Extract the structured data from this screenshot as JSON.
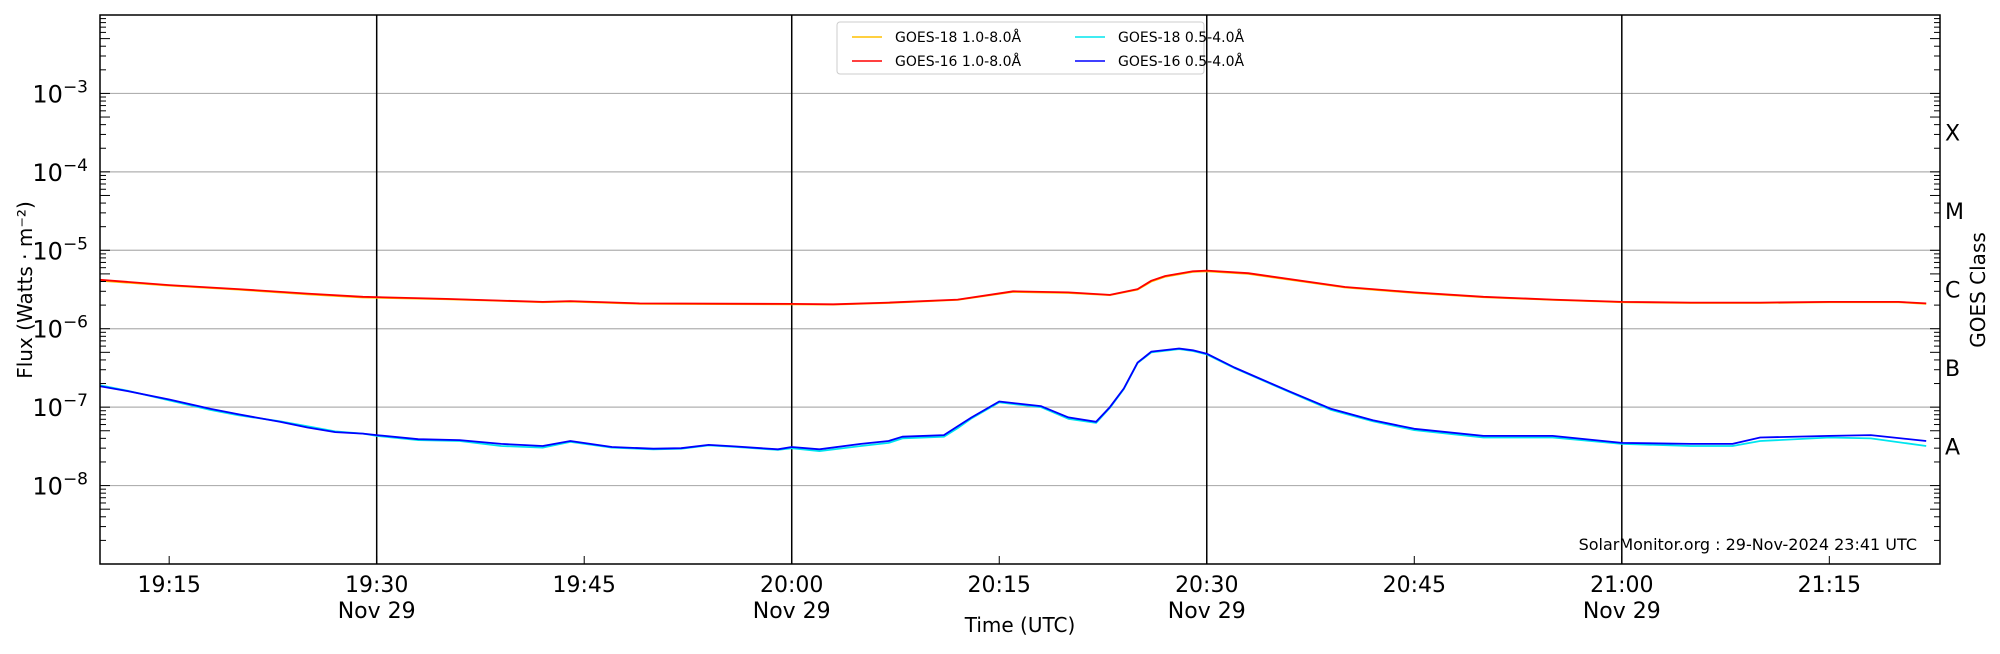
{
  "chart_data": {
    "type": "line",
    "title": "",
    "xlabel": "Time (UTC)",
    "ylabel": "Flux (Watts · m⁻²)",
    "ylabel_right": "GOES Class",
    "yscale": "log",
    "ylim": [
      1e-09,
      0.01
    ],
    "xlim": [
      "19:10",
      "21:23"
    ],
    "grid": "horizontal at each decade",
    "y_ticks": [
      {
        "value": 0.001,
        "base": "10",
        "exp": "−3"
      },
      {
        "value": 0.0001,
        "base": "10",
        "exp": "−4"
      },
      {
        "value": 1e-05,
        "base": "10",
        "exp": "−5"
      },
      {
        "value": 1e-06,
        "base": "10",
        "exp": "−6"
      },
      {
        "value": 1e-07,
        "base": "10",
        "exp": "−7"
      },
      {
        "value": 1e-08,
        "base": "10",
        "exp": "−8"
      }
    ],
    "x_ticks": [
      {
        "time": "19:15",
        "label": "19:15",
        "date": "",
        "vline": false
      },
      {
        "time": "19:30",
        "label": "19:30",
        "date": "Nov 29",
        "vline": true
      },
      {
        "time": "19:45",
        "label": "19:45",
        "date": "",
        "vline": false
      },
      {
        "time": "20:00",
        "label": "20:00",
        "date": "Nov 29",
        "vline": true
      },
      {
        "time": "20:15",
        "label": "20:15",
        "date": "",
        "vline": false
      },
      {
        "time": "20:30",
        "label": "20:30",
        "date": "Nov 29",
        "vline": true
      },
      {
        "time": "20:45",
        "label": "20:45",
        "date": "",
        "vline": false
      },
      {
        "time": "21:00",
        "label": "21:00",
        "date": "Nov 29",
        "vline": true
      },
      {
        "time": "21:15",
        "label": "21:15",
        "date": "",
        "vline": false
      }
    ],
    "goes_classes": [
      {
        "label": "X",
        "value": 0.000316
      },
      {
        "label": "M",
        "value": 3.16e-05
      },
      {
        "label": "C",
        "value": 3.16e-06
      },
      {
        "label": "B",
        "value": 3.16e-07
      },
      {
        "label": "A",
        "value": 3.16e-08
      }
    ],
    "legend_position": "top-center",
    "series": [
      {
        "name": "GOES-18 1.0-8.0Å",
        "color": "#ffc000",
        "x": [
          "19:10",
          "19:15",
          "19:20",
          "19:25",
          "19:29",
          "19:35",
          "19:42",
          "19:44",
          "19:49",
          "20:00",
          "20:03",
          "20:07",
          "20:12",
          "20:16",
          "20:20",
          "20:23",
          "20:25",
          "20:26",
          "20:27",
          "20:29",
          "20:30",
          "20:33",
          "20:40",
          "20:45",
          "20:50",
          "20:55",
          "21:00",
          "21:05",
          "21:10",
          "21:15",
          "21:20",
          "21:22"
        ],
        "values": [
          4.1e-06,
          3.55e-06,
          3.15e-06,
          2.75e-06,
          2.5e-06,
          2.38e-06,
          2.18e-06,
          2.22e-06,
          2.08e-06,
          2.05e-06,
          2.03e-06,
          2.13e-06,
          2.33e-06,
          2.95e-06,
          2.85e-06,
          2.68e-06,
          3.15e-06,
          4e-06,
          4.6e-06,
          5.3e-06,
          5.4e-06,
          5e-06,
          3.35e-06,
          2.85e-06,
          2.52e-06,
          2.33e-06,
          2.18e-06,
          2.13e-06,
          2.13e-06,
          2.18e-06,
          2.18e-06,
          2.08e-06
        ]
      },
      {
        "name": "GOES-18 0.5-4.0Å",
        "color": "#00e5ee",
        "x": [
          "19:10",
          "19:12",
          "19:15",
          "19:18",
          "19:20",
          "19:23",
          "19:25",
          "19:27",
          "19:29",
          "19:30",
          "19:33",
          "19:36",
          "19:39",
          "19:42",
          "19:44",
          "19:47",
          "19:50",
          "19:52",
          "19:54",
          "19:56",
          "19:59",
          "20:00",
          "20:02",
          "20:05",
          "20:07",
          "20:08",
          "20:11",
          "20:12",
          "20:13",
          "20:15",
          "20:18",
          "20:20",
          "20:22",
          "20:23",
          "20:24",
          "20:25",
          "20:26",
          "20:28",
          "20:29",
          "20:30",
          "20:32",
          "20:36",
          "20:39",
          "20:42",
          "20:45",
          "20:50",
          "20:55",
          "21:00",
          "21:05",
          "21:08",
          "21:10",
          "21:15",
          "21:18",
          "21:22"
        ],
        "values": [
          1.9e-07,
          1.62e-07,
          1.22e-07,
          9.2e-08,
          7.9e-08,
          6.6e-08,
          5.7e-08,
          4.9e-08,
          4.6e-08,
          4.3e-08,
          3.8e-08,
          3.7e-08,
          3.2e-08,
          3.05e-08,
          3.6e-08,
          3.05e-08,
          2.9e-08,
          2.95e-08,
          3.25e-08,
          3.1e-08,
          2.85e-08,
          3e-08,
          2.75e-08,
          3.2e-08,
          3.5e-08,
          4e-08,
          4.2e-08,
          5.4e-08,
          7.2e-08,
          1.15e-07,
          1e-07,
          7.1e-08,
          6.3e-08,
          9.8e-08,
          1.7e-07,
          3.65e-07,
          5e-07,
          5.5e-07,
          5.2e-07,
          4.7e-07,
          3.15e-07,
          1.55e-07,
          9.2e-08,
          6.6e-08,
          5.1e-08,
          4.1e-08,
          4.1e-08,
          3.4e-08,
          3.2e-08,
          3.2e-08,
          3.7e-08,
          4.1e-08,
          4e-08,
          3.2e-08
        ]
      },
      {
        "name": "GOES-16 1.0-8.0Å",
        "color": "#ff0000",
        "x": [
          "19:10",
          "19:15",
          "19:20",
          "19:25",
          "19:29",
          "19:35",
          "19:42",
          "19:44",
          "19:49",
          "20:00",
          "20:03",
          "20:07",
          "20:12",
          "20:16",
          "20:20",
          "20:23",
          "20:25",
          "20:26",
          "20:27",
          "20:29",
          "20:30",
          "20:33",
          "20:40",
          "20:45",
          "20:50",
          "20:55",
          "21:00",
          "21:05",
          "21:10",
          "21:15",
          "21:20",
          "21:22"
        ],
        "values": [
          4.2e-06,
          3.6e-06,
          3.2e-06,
          2.8e-06,
          2.55e-06,
          2.4e-06,
          2.2e-06,
          2.25e-06,
          2.1e-06,
          2.07e-06,
          2.05e-06,
          2.15e-06,
          2.35e-06,
          3e-06,
          2.9e-06,
          2.7e-06,
          3.2e-06,
          4.1e-06,
          4.7e-06,
          5.4e-06,
          5.5e-06,
          5.1e-06,
          3.4e-06,
          2.9e-06,
          2.55e-06,
          2.35e-06,
          2.2e-06,
          2.15e-06,
          2.15e-06,
          2.2e-06,
          2.2e-06,
          2.1e-06
        ]
      },
      {
        "name": "GOES-16 0.5-4.0Å",
        "color": "#0000ff",
        "x": [
          "19:10",
          "19:12",
          "19:15",
          "19:18",
          "19:20",
          "19:23",
          "19:25",
          "19:27",
          "19:29",
          "19:30",
          "19:33",
          "19:36",
          "19:39",
          "19:42",
          "19:44",
          "19:47",
          "19:50",
          "19:52",
          "19:54",
          "19:56",
          "19:59",
          "20:00",
          "20:02",
          "20:05",
          "20:07",
          "20:08",
          "20:11",
          "20:12",
          "20:13",
          "20:15",
          "20:18",
          "20:20",
          "20:22",
          "20:23",
          "20:24",
          "20:25",
          "20:26",
          "20:28",
          "20:29",
          "20:30",
          "20:32",
          "20:36",
          "20:39",
          "20:42",
          "20:45",
          "20:50",
          "20:55",
          "21:00",
          "21:05",
          "21:08",
          "21:10",
          "21:15",
          "21:18",
          "21:22"
        ],
        "values": [
          1.85e-07,
          1.6e-07,
          1.25e-07,
          9.5e-08,
          8.1e-08,
          6.5e-08,
          5.5e-08,
          4.8e-08,
          4.6e-08,
          4.4e-08,
          3.9e-08,
          3.8e-08,
          3.4e-08,
          3.2e-08,
          3.7e-08,
          3.1e-08,
          2.95e-08,
          3e-08,
          3.3e-08,
          3.15e-08,
          2.9e-08,
          3.1e-08,
          2.9e-08,
          3.4e-08,
          3.7e-08,
          4.2e-08,
          4.4e-08,
          5.7e-08,
          7.4e-08,
          1.18e-07,
          1.03e-07,
          7.4e-08,
          6.5e-08,
          1e-07,
          1.73e-07,
          3.7e-07,
          5.1e-07,
          5.6e-07,
          5.3e-07,
          4.8e-07,
          3.2e-07,
          1.58e-07,
          9.5e-08,
          6.8e-08,
          5.3e-08,
          4.3e-08,
          4.3e-08,
          3.5e-08,
          3.4e-08,
          3.4e-08,
          4.1e-08,
          4.3e-08,
          4.4e-08,
          3.7e-08
        ]
      }
    ],
    "annotation": "SolarMonitor.org : 29-Nov-2024 23:41 UTC"
  }
}
